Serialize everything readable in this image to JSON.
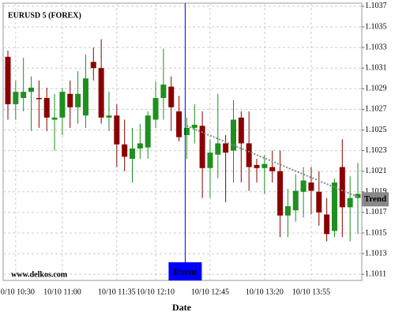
{
  "chart_data": {
    "type": "candlestick",
    "title": "EURUSD 5 (FOREX)",
    "xlabel": "Date",
    "watermark": "www.delkos.com",
    "categories": [
      null,
      "10/10 10:30",
      null,
      null,
      null,
      null,
      null,
      "10/10 11:00",
      null,
      null,
      null,
      null,
      null,
      null,
      "10/10 11:35",
      null,
      null,
      null,
      null,
      "10/10 12:10",
      null,
      null,
      null,
      null,
      null,
      null,
      "10/10 12:45",
      null,
      null,
      null,
      null,
      null,
      null,
      "10/10 13:20",
      null,
      null,
      null,
      null,
      null,
      "10/10 13:55",
      null,
      null,
      null,
      null,
      null,
      null
    ],
    "open": [
      1.10321,
      1.10275,
      1.10281,
      1.10287,
      1.10281,
      1.10281,
      1.1026,
      1.10262,
      1.10285,
      1.10272,
      1.10264,
      1.10316,
      1.1031,
      1.10262,
      1.10264,
      1.10236,
      1.10222,
      1.10232,
      1.10233,
      1.1026,
      1.10281,
      1.10292,
      1.10268,
      1.10245,
      1.10252,
      1.10254,
      1.10213,
      1.10226,
      1.10237,
      1.1023,
      1.10262,
      1.10237,
      1.10216,
      1.10213,
      1.10214,
      1.1021,
      1.10167,
      1.10172,
      1.1019,
      1.10199,
      1.1019,
      1.10168,
      1.10152,
      1.10214,
      1.10175,
      1.10184
    ],
    "high": [
      1.10327,
      1.10298,
      1.1032,
      1.10302,
      1.10298,
      1.10291,
      1.10285,
      1.10291,
      1.10298,
      1.10307,
      1.10323,
      1.1033,
      1.10338,
      1.10287,
      1.10275,
      1.1026,
      1.10252,
      1.10256,
      1.10268,
      1.10297,
      1.10329,
      1.10302,
      1.10283,
      1.10262,
      1.10275,
      1.10268,
      1.10241,
      1.10285,
      1.10245,
      1.10279,
      1.10268,
      1.10268,
      1.10222,
      1.10226,
      1.1023,
      1.1023,
      1.10193,
      1.10207,
      1.10214,
      1.10214,
      1.1021,
      1.10184,
      1.10203,
      1.10241,
      1.10205,
      1.10218
    ],
    "low": [
      1.1026,
      1.1026,
      1.10268,
      1.10249,
      1.10252,
      1.10249,
      1.1023,
      1.10245,
      1.10252,
      1.10256,
      1.10252,
      1.10298,
      1.10256,
      1.10249,
      1.10214,
      1.1021,
      1.10199,
      1.10222,
      1.10222,
      1.10252,
      1.1026,
      1.10249,
      1.10239,
      1.10222,
      1.10237,
      1.10184,
      1.10184,
      1.10203,
      1.1018,
      1.10199,
      1.10199,
      1.10191,
      1.10199,
      1.10188,
      1.10199,
      1.10146,
      1.10146,
      1.10161,
      1.10165,
      1.10168,
      1.10157,
      1.10142,
      1.10146,
      1.10146,
      1.10142,
      1.10149
    ],
    "close": [
      1.10275,
      1.10287,
      1.10287,
      1.10291,
      1.1028,
      1.10262,
      1.10262,
      1.10287,
      1.10272,
      1.10285,
      1.103,
      1.1031,
      1.10262,
      1.10264,
      1.10236,
      1.10224,
      1.10232,
      1.10237,
      1.10264,
      1.10281,
      1.10294,
      1.10272,
      1.10243,
      1.10252,
      1.10255,
      1.10213,
      1.10228,
      1.10237,
      1.10228,
      1.1026,
      1.10237,
      1.10214,
      1.10213,
      1.10217,
      1.1021,
      1.10167,
      1.10176,
      1.10191,
      1.10201,
      1.10191,
      1.1017,
      1.10149,
      1.10199,
      1.10175,
      1.10184,
      1.10188
    ],
    "up_color": "#1f8f1f",
    "down_color": "#8b0000",
    "ylim": [
      1.10104,
      1.10373
    ],
    "yticks": [
      1.1011,
      1.1013,
      1.1015,
      1.1017,
      1.1019,
      1.1021,
      1.1023,
      1.1025,
      1.1027,
      1.1029,
      1.1031,
      1.1033,
      1.1035,
      1.1037
    ],
    "grid": true,
    "event": {
      "label": "Event",
      "x": 23,
      "color": "#0000ff"
    },
    "trend": {
      "label": "Trend",
      "x": [
        23,
        45
      ],
      "values": [
        1.10254,
        1.10185
      ],
      "color": "#888888"
    }
  }
}
